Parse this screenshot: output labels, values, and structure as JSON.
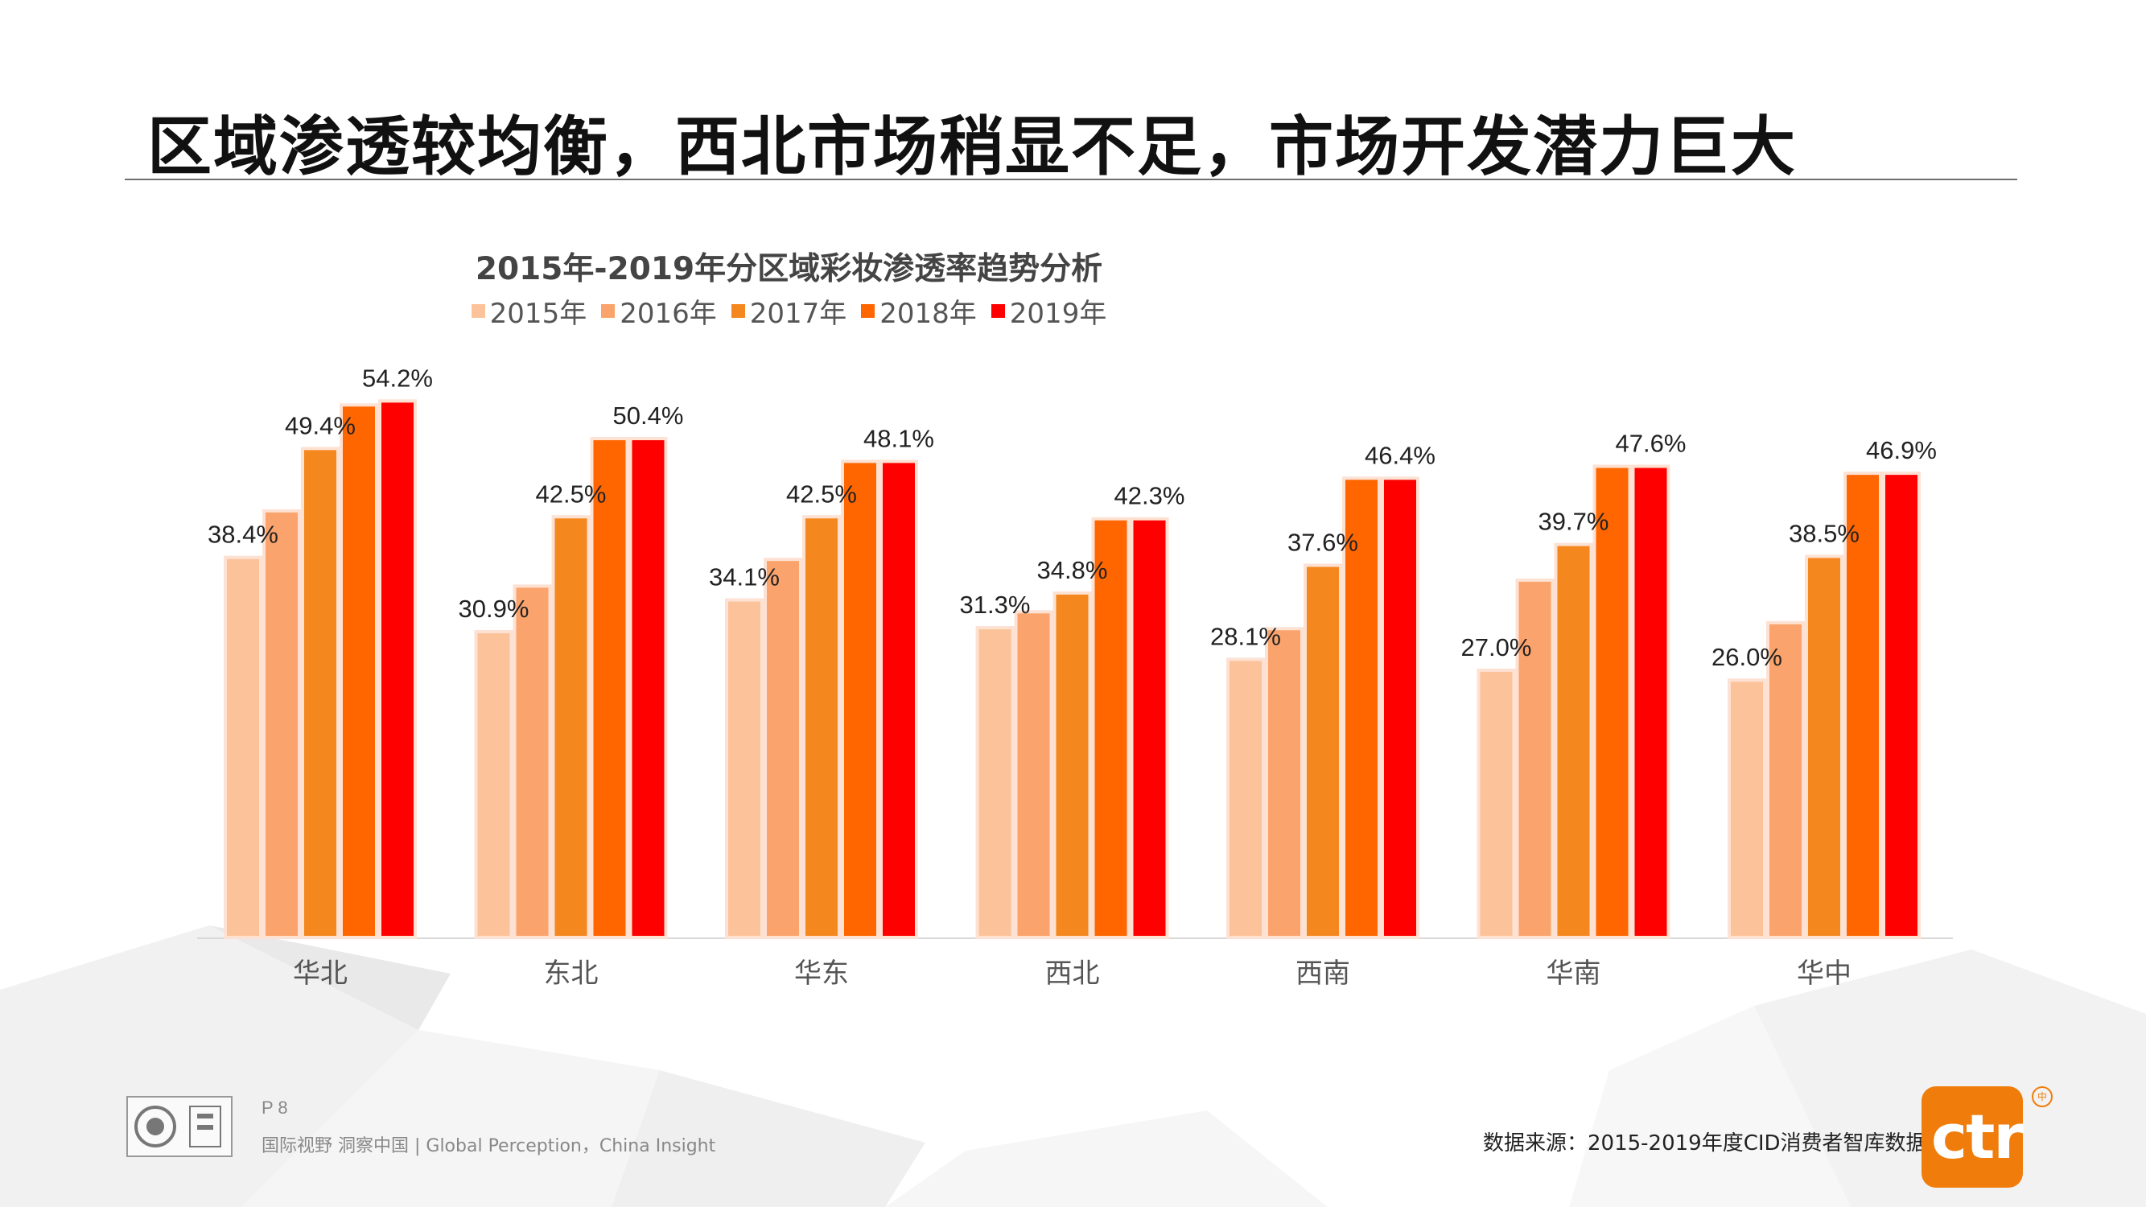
{
  "slide": {
    "title": "区域渗透较均衡，西北市场稍显不足，市场开发潜力巨大",
    "page_number": "P 8",
    "slogan": "国际视野  洞察中国 |  Global Perception，China Insight",
    "source": "数据来源：2015-2019年度CID消费者智库数据",
    "logo_text": "ctr",
    "logo_reg": "中"
  },
  "colors": {
    "s2015": "#fcc39a",
    "s2016": "#fba36c",
    "s2017": "#f4871e",
    "s2018": "#ff6600",
    "s2019": "#ff0000",
    "bar_outline": "#fde2d4"
  },
  "chart_data": {
    "type": "bar",
    "title": "2015年-2019年分区域彩妆渗透率趋势分析",
    "categories": [
      "华北",
      "东北",
      "华东",
      "西北",
      "西南",
      "华南",
      "华中"
    ],
    "series": [
      {
        "name": "2015年",
        "values": [
          38.4,
          30.9,
          34.1,
          31.3,
          28.1,
          27.0,
          26.0
        ]
      },
      {
        "name": "2016年",
        "values": [
          43.1,
          35.5,
          38.2,
          32.9,
          31.2,
          36.1,
          31.8
        ]
      },
      {
        "name": "2017年",
        "values": [
          49.4,
          42.5,
          42.5,
          34.8,
          37.6,
          39.7,
          38.5
        ]
      },
      {
        "name": "2018年",
        "values": [
          53.8,
          50.4,
          48.1,
          42.3,
          46.4,
          47.6,
          46.9
        ]
      },
      {
        "name": "2019年",
        "values": [
          54.2,
          50.4,
          48.1,
          42.3,
          46.4,
          47.6,
          46.9
        ]
      }
    ],
    "data_labels": [
      {
        "category": "华北",
        "series": "2015年",
        "text": "38.4%"
      },
      {
        "category": "华北",
        "series": "2017年",
        "text": "49.4%"
      },
      {
        "category": "华北",
        "series": "2019年",
        "text": "54.2%"
      },
      {
        "category": "东北",
        "series": "2015年",
        "text": "30.9%"
      },
      {
        "category": "东北",
        "series": "2017年",
        "text": "42.5%"
      },
      {
        "category": "东北",
        "series": "2019年",
        "text": "50.4%"
      },
      {
        "category": "华东",
        "series": "2015年",
        "text": "34.1%"
      },
      {
        "category": "华东",
        "series": "2017年",
        "text": "42.5%"
      },
      {
        "category": "华东",
        "series": "2019年",
        "text": "48.1%"
      },
      {
        "category": "西北",
        "series": "2015年",
        "text": "31.3%"
      },
      {
        "category": "西北",
        "series": "2017年",
        "text": "34.8%"
      },
      {
        "category": "西北",
        "series": "2019年",
        "text": "42.3%"
      },
      {
        "category": "西南",
        "series": "2015年",
        "text": "28.1%"
      },
      {
        "category": "西南",
        "series": "2017年",
        "text": "37.6%"
      },
      {
        "category": "西南",
        "series": "2019年",
        "text": "46.4%"
      },
      {
        "category": "华南",
        "series": "2015年",
        "text": "27.0%"
      },
      {
        "category": "华南",
        "series": "2017年",
        "text": "39.7%"
      },
      {
        "category": "华南",
        "series": "2019年",
        "text": "47.6%"
      },
      {
        "category": "华中",
        "series": "2015年",
        "text": "26.0%"
      },
      {
        "category": "华中",
        "series": "2017年",
        "text": "38.5%"
      },
      {
        "category": "华中",
        "series": "2019年",
        "text": "46.9%"
      }
    ],
    "ylim": [
      0,
      58
    ],
    "grid": false,
    "legend": "top-center"
  }
}
